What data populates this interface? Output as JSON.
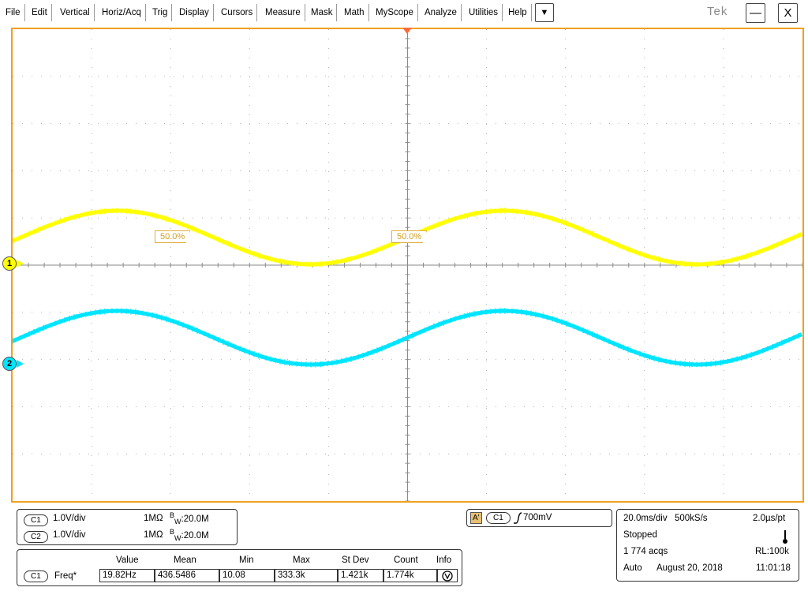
{
  "menu": {
    "items": [
      "File",
      "Edit",
      "Vertical",
      "Horiz/Acq",
      "Trig",
      "Display",
      "Cursors",
      "Measure",
      "Mask",
      "Math",
      "MyScope",
      "Analyze",
      "Utilities",
      "Help"
    ],
    "dropdown_glyph": "▼",
    "brand": "Tek",
    "minimize_glyph": "—",
    "close_glyph": "X"
  },
  "screen": {
    "ch1_marker": "1",
    "ch2_marker": "2",
    "level_labels": [
      "50.0%",
      "50.0%"
    ],
    "colors": {
      "frame": "#f0a020",
      "ch1": "#ffff00",
      "ch2": "#00e5ff",
      "trigger": "#ff6a3a",
      "grid": "#b0b0b0"
    }
  },
  "channels": [
    {
      "id": "C1",
      "scale": "1.0V/div",
      "impedance": "1MΩ",
      "bw_prefix": "B",
      "bw_sub": "W",
      "bandwidth": ":20.0M"
    },
    {
      "id": "C2",
      "scale": "1.0V/div",
      "impedance": "1MΩ",
      "bw_prefix": "B",
      "bw_sub": "W",
      "bandwidth": ":20.0M"
    }
  ],
  "trigger": {
    "mode_tag": "A'",
    "source": "C1",
    "level": "700mV"
  },
  "acquisition": {
    "timebase": "20.0ms/div",
    "sample_rate": "500kS/s",
    "resolution": "2.0µs/pt",
    "state": "Stopped",
    "acqs": "1 774 acqs",
    "record_length": "RL:100k",
    "trigger_mode": "Auto",
    "date": "August 20, 2018",
    "time": "11:01:18"
  },
  "measurements": {
    "headers": [
      "Value",
      "Mean",
      "Min",
      "Max",
      "St Dev",
      "Count",
      "Info"
    ],
    "rows": [
      {
        "source": "C1",
        "name": "Freq*",
        "value": "19.82Hz",
        "mean": "436.5486",
        "min": "10.08",
        "max": "333.3k",
        "stdev": "1.421k",
        "count": "1.774k"
      }
    ]
  }
}
